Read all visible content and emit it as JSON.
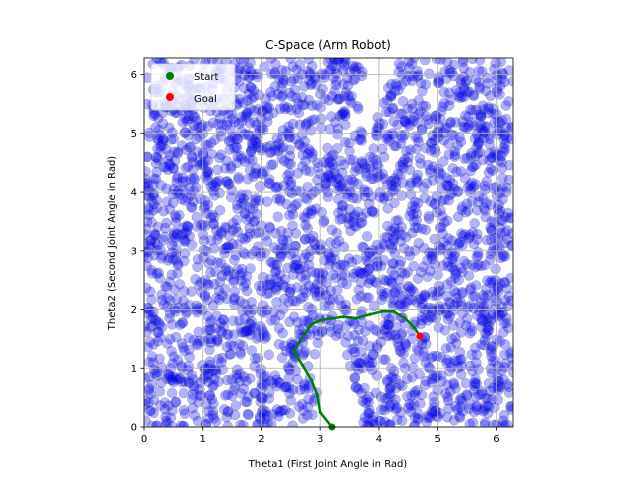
{
  "chart_data": {
    "type": "scatter",
    "title": "C-Space (Arm Robot)",
    "xlabel": "Theta1 (First Joint Angle in Rad)",
    "ylabel": "Theta2 (Second Joint Angle in Rad)",
    "xlim": [
      0,
      6.283
    ],
    "ylim": [
      0,
      6.283
    ],
    "xticks": [
      "0",
      "1",
      "2",
      "3",
      "4",
      "5",
      "6"
    ],
    "yticks": [
      "0",
      "1",
      "2",
      "3",
      "4",
      "5",
      "6"
    ],
    "grid": true,
    "legend_position": "upper-left",
    "series": [
      {
        "name": "Start",
        "marker": "circle",
        "color": "#008000",
        "points": [
          [
            3.2,
            0.0
          ]
        ]
      },
      {
        "name": "Goal",
        "marker": "circle",
        "color": "#ff0000",
        "points": [
          [
            4.7,
            1.55
          ]
        ]
      }
    ],
    "obstacle_samples": {
      "marker": "circle",
      "color": "#0000ff",
      "alpha": 0.3,
      "approx_count": 2600,
      "free_regions": [
        {
          "shape": "polygon",
          "points": [
            [
              2.9,
              0.0
            ],
            [
              3.3,
              0.0
            ],
            [
              3.75,
              0.0
            ],
            [
              3.55,
              0.9
            ],
            [
              3.3,
              1.5
            ],
            [
              3.1,
              1.7
            ],
            [
              2.95,
              1.4
            ],
            [
              2.95,
              0.6
            ]
          ]
        },
        {
          "shape": "polygon",
          "points": [
            [
              3.75,
              6.283
            ],
            [
              4.3,
              6.283
            ],
            [
              4.1,
              5.7
            ],
            [
              3.9,
              5.2
            ],
            [
              3.75,
              4.9
            ],
            [
              3.65,
              5.4
            ]
          ]
        }
      ]
    },
    "path": {
      "color": "#008000",
      "points": [
        [
          3.2,
          0.0
        ],
        [
          3.0,
          0.25
        ],
        [
          2.95,
          0.55
        ],
        [
          2.85,
          0.8
        ],
        [
          2.7,
          1.05
        ],
        [
          2.6,
          1.2
        ],
        [
          2.55,
          1.3
        ],
        [
          2.65,
          1.45
        ],
        [
          2.75,
          1.6
        ],
        [
          2.85,
          1.75
        ],
        [
          3.0,
          1.82
        ],
        [
          3.2,
          1.85
        ],
        [
          3.4,
          1.88
        ],
        [
          3.6,
          1.85
        ],
        [
          3.85,
          1.92
        ],
        [
          4.05,
          1.97
        ],
        [
          4.25,
          1.97
        ],
        [
          4.45,
          1.85
        ],
        [
          4.6,
          1.7
        ],
        [
          4.7,
          1.55
        ]
      ]
    }
  }
}
